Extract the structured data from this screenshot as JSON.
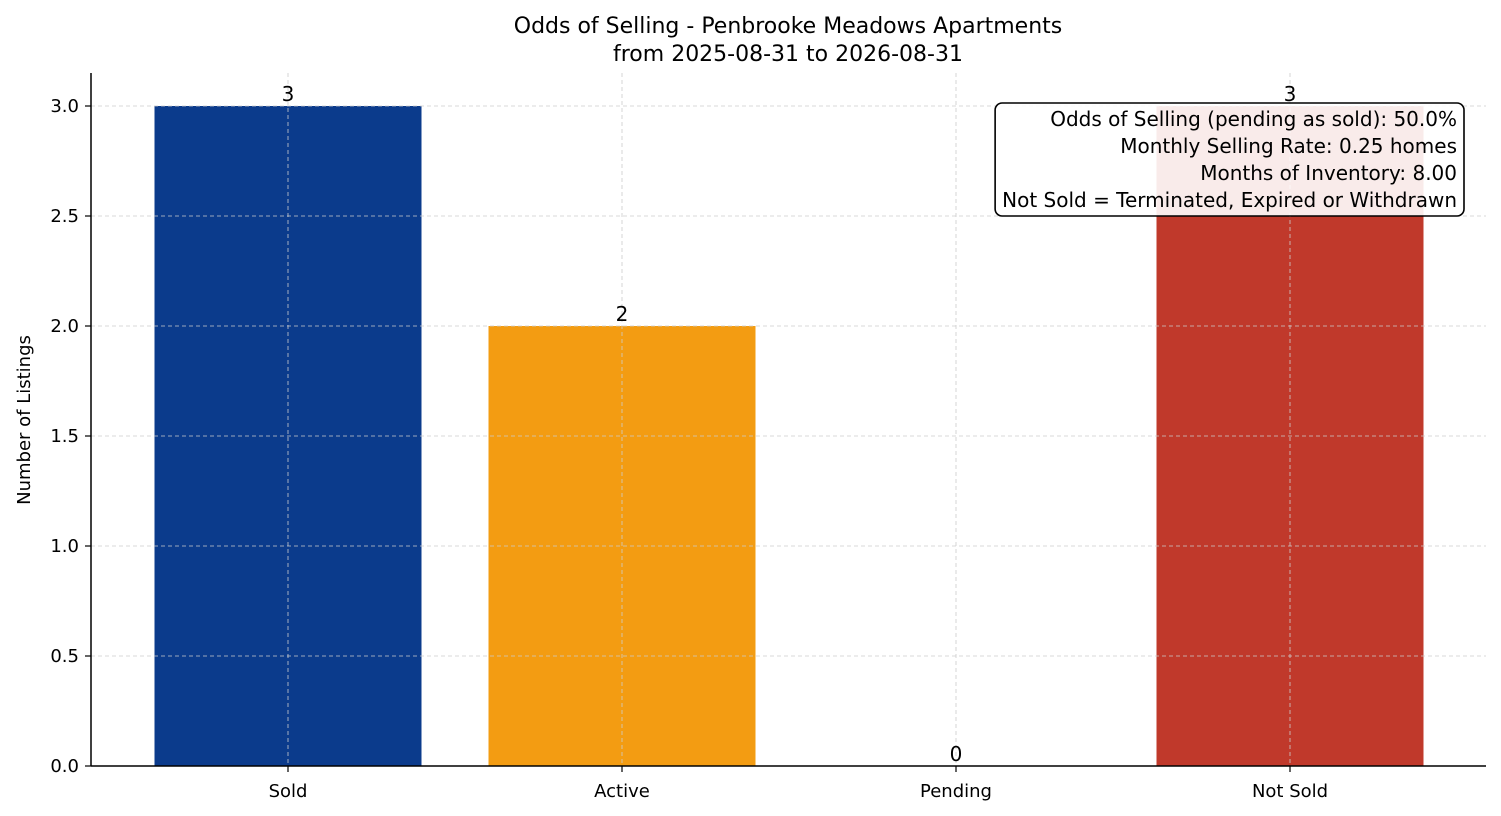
{
  "chart_data": {
    "type": "bar",
    "title": "Odds of Selling - Penbrooke Meadows Apartments",
    "subtitle": "from 2025-08-31 to 2026-08-31",
    "xlabel": "",
    "ylabel": "Number of Listings",
    "categories": [
      "Sold",
      "Active",
      "Pending",
      "Not Sold"
    ],
    "values": [
      3,
      2,
      0,
      3
    ],
    "value_labels": [
      "3",
      "2",
      "0",
      "3"
    ],
    "colors": [
      "#0b3b8c",
      "#f39c12",
      "#2e86c1",
      "#c0392b"
    ],
    "ylim": [
      0,
      3.15
    ],
    "yticks": [
      0.0,
      0.5,
      1.0,
      1.5,
      2.0,
      2.5,
      3.0
    ],
    "ytick_labels": [
      "0.0",
      "0.5",
      "1.0",
      "1.5",
      "2.0",
      "2.5",
      "3.0"
    ],
    "grid": true,
    "annotation": {
      "placement": "top-right",
      "lines": [
        "Odds of Selling (pending as sold): 50.0%",
        "Monthly Selling Rate: 0.25 homes",
        "Months of Inventory: 8.00",
        "Not Sold = Terminated, Expired or Withdrawn"
      ]
    }
  }
}
